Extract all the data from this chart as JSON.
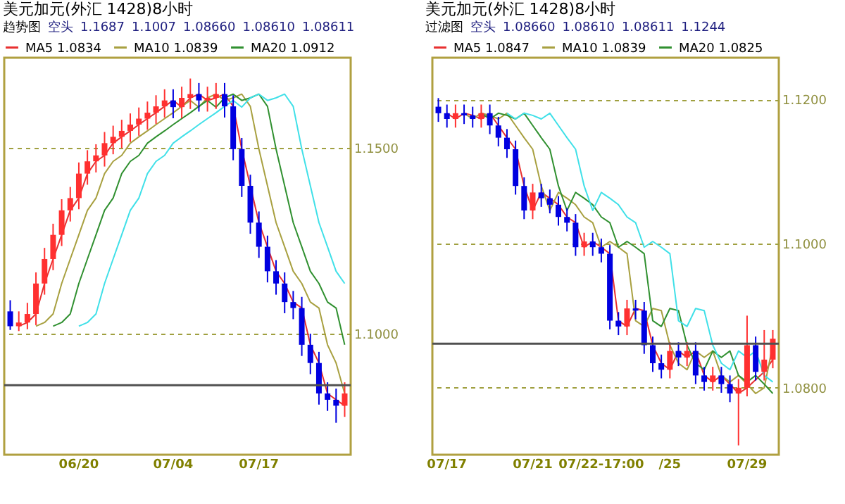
{
  "chart_data": [
    {
      "type": "candlestick",
      "title": "美元加元(外汇 1428)8小时",
      "subtitle": "趋势图",
      "annotations": [
        "空头",
        "1.1687",
        "1.1007",
        "1.08660",
        "1.08610",
        "1.08611"
      ],
      "categories": [
        null,
        null,
        null,
        null,
        null,
        null,
        null,
        null,
        "06/20",
        null,
        null,
        null,
        null,
        null,
        null,
        null,
        null,
        null,
        null,
        "07/04",
        null,
        null,
        null,
        null,
        null,
        null,
        null,
        null,
        null,
        "07/17",
        null,
        null,
        null,
        null,
        null,
        null,
        null,
        null,
        null,
        null
      ],
      "ohlc": [
        [
          1.106,
          1.109,
          1.101,
          1.102
        ],
        [
          1.102,
          1.106,
          1.1007,
          1.103
        ],
        [
          1.103,
          1.1083,
          1.1012,
          1.1053
        ],
        [
          1.1053,
          1.1165,
          1.1023,
          1.1135
        ],
        [
          1.1135,
          1.1231,
          1.1105,
          1.1201
        ],
        [
          1.1201,
          1.1296,
          1.1171,
          1.1266
        ],
        [
          1.1266,
          1.1362,
          1.1236,
          1.1332
        ],
        [
          1.1332,
          1.1395,
          1.1302,
          1.1365
        ],
        [
          1.1365,
          1.1461,
          1.1335,
          1.1431
        ],
        [
          1.1431,
          1.1494,
          1.1401,
          1.1464
        ],
        [
          1.1464,
          1.151,
          1.1434,
          1.148
        ],
        [
          1.148,
          1.1543,
          1.145,
          1.1513
        ],
        [
          1.1513,
          1.156,
          1.1483,
          1.153
        ],
        [
          1.153,
          1.1576,
          1.15,
          1.1546
        ],
        [
          1.1546,
          1.1593,
          1.1516,
          1.1563
        ],
        [
          1.1563,
          1.1609,
          1.1533,
          1.1579
        ],
        [
          1.1579,
          1.1625,
          1.1549,
          1.1595
        ],
        [
          1.1595,
          1.1642,
          1.1565,
          1.1612
        ],
        [
          1.1612,
          1.1658,
          1.1582,
          1.1628
        ],
        [
          1.1628,
          1.1658,
          1.158,
          1.161
        ],
        [
          1.161,
          1.1665,
          1.158,
          1.1635
        ],
        [
          1.1635,
          1.1687,
          1.1605,
          1.1645
        ],
        [
          1.1645,
          1.1675,
          1.1598,
          1.1628
        ],
        [
          1.1628,
          1.1665,
          1.1598,
          1.1635
        ],
        [
          1.1635,
          1.1675,
          1.1605,
          1.1645
        ],
        [
          1.1645,
          1.1675,
          1.1582,
          1.1612
        ],
        [
          1.1612,
          1.1642,
          1.1467,
          1.1497
        ],
        [
          1.1497,
          1.1527,
          1.1368,
          1.1398
        ],
        [
          1.1398,
          1.1428,
          1.1269,
          1.1299
        ],
        [
          1.1299,
          1.1329,
          1.1204,
          1.1234
        ],
        [
          1.1234,
          1.1264,
          1.1138,
          1.1168
        ],
        [
          1.1168,
          1.1198,
          1.1105,
          1.1135
        ],
        [
          1.1135,
          1.1165,
          1.1055,
          1.1085
        ],
        [
          1.1085,
          1.1115,
          1.1039,
          1.1069
        ],
        [
          1.1069,
          1.1099,
          1.094,
          1.097
        ],
        [
          1.097,
          1.1,
          1.0891,
          1.0921
        ],
        [
          1.0921,
          1.0951,
          1.0809,
          1.0839
        ],
        [
          1.0839,
          1.0869,
          1.0792,
          1.0822
        ],
        [
          1.0822,
          1.0852,
          1.076,
          1.0806
        ],
        [
          1.0806,
          1.0869,
          1.0776,
          1.0839
        ]
      ],
      "series": [
        {
          "type": "line",
          "name": "MA5 1.0834",
          "color": "#e83030",
          "values": [
            null,
            1.102,
            1.103,
            1.1053,
            1.1135,
            1.1201,
            1.1266,
            1.1332,
            1.1365,
            1.1431,
            1.1464,
            1.148,
            1.1513,
            1.153,
            1.1546,
            1.1563,
            1.1579,
            1.1595,
            1.1612,
            1.1628,
            1.161,
            1.1635,
            1.1645,
            1.1628,
            1.1635,
            1.1645,
            1.1612,
            1.1497,
            1.1398,
            1.1299,
            1.1234,
            1.1168,
            1.1135,
            1.1085,
            1.1069,
            1.097,
            1.0921,
            1.0839,
            1.0822,
            1.0806
          ]
        },
        {
          "type": "line",
          "name": "MA10 1.0839",
          "color": "#a8a040",
          "values": [
            null,
            null,
            null,
            1.102,
            1.103,
            1.1053,
            1.1135,
            1.1201,
            1.1266,
            1.1332,
            1.1365,
            1.1431,
            1.1464,
            1.148,
            1.1513,
            1.153,
            1.1546,
            1.1563,
            1.1579,
            1.1595,
            1.1612,
            1.1628,
            1.161,
            1.1635,
            1.1645,
            1.1628,
            1.1635,
            1.1645,
            1.1612,
            1.1497,
            1.1398,
            1.1299,
            1.1234,
            1.1168,
            1.1135,
            1.1085,
            1.1069,
            1.097,
            1.0921,
            1.0839
          ]
        },
        {
          "type": "line",
          "name": "MA20 1.0912",
          "color": "#309030",
          "values": [
            null,
            null,
            null,
            null,
            null,
            1.102,
            1.103,
            1.1053,
            1.1135,
            1.1201,
            1.1266,
            1.1332,
            1.1365,
            1.1431,
            1.1464,
            1.148,
            1.1513,
            1.153,
            1.1546,
            1.1563,
            1.1579,
            1.1595,
            1.1612,
            1.1628,
            1.161,
            1.1635,
            1.1645,
            1.1628,
            1.1635,
            1.1645,
            1.1612,
            1.1497,
            1.1398,
            1.1299,
            1.1234,
            1.1168,
            1.1135,
            1.1085,
            1.1069,
            1.097
          ]
        },
        {
          "type": "line",
          "color": "#40e0e8",
          "values": [
            null,
            null,
            null,
            null,
            null,
            null,
            null,
            null,
            1.102,
            1.103,
            1.1053,
            1.1135,
            1.1201,
            1.1266,
            1.1332,
            1.1365,
            1.1431,
            1.1464,
            1.148,
            1.1513,
            1.153,
            1.1546,
            1.1563,
            1.1579,
            1.1595,
            1.1612,
            1.1628,
            1.161,
            1.1635,
            1.1645,
            1.1628,
            1.1635,
            1.1645,
            1.1612,
            1.1497,
            1.1398,
            1.1299,
            1.1234,
            1.1168,
            1.1135
          ]
        }
      ],
      "ylim": [
        1.0674,
        1.1743
      ],
      "yticks": [
        {
          "value": 1.15,
          "label": "1.1500"
        },
        {
          "value": 1.1,
          "label": "1.1000"
        }
      ],
      "grid": "y",
      "legend": "top",
      "ref_lines": [
        {
          "axis": "y",
          "value": 1.0861,
          "color": "#505050"
        }
      ]
    },
    {
      "type": "candlestick",
      "title": "美元加元(外汇 1428)8小时",
      "subtitle": "过滤图",
      "annotations": [
        "空头",
        "1.08660",
        "1.08610",
        "1.08611",
        "1.1244"
      ],
      "categories": [
        null,
        "07/17",
        null,
        null,
        null,
        null,
        null,
        null,
        null,
        null,
        null,
        "07/21",
        null,
        null,
        null,
        null,
        null,
        null,
        null,
        "07/22-17:00",
        null,
        null,
        null,
        null,
        null,
        null,
        null,
        "/25",
        null,
        null,
        null,
        null,
        null,
        null,
        null,
        null,
        "07/29",
        null,
        null,
        null
      ],
      "ohlc": [
        [
          1.119,
          1.1202,
          1.1169,
          1.1181
        ],
        [
          1.1181,
          1.1193,
          1.1161,
          1.1173
        ],
        [
          1.1173,
          1.1193,
          1.1161,
          1.1181
        ],
        [
          1.1181,
          1.1193,
          1.1166,
          1.1178
        ],
        [
          1.1178,
          1.119,
          1.1161,
          1.1173
        ],
        [
          1.1173,
          1.1193,
          1.1161,
          1.1181
        ],
        [
          1.1181,
          1.1193,
          1.1152,
          1.1164
        ],
        [
          1.1164,
          1.1176,
          1.1135,
          1.1147
        ],
        [
          1.1147,
          1.1159,
          1.1119,
          1.1131
        ],
        [
          1.1131,
          1.1143,
          1.1068,
          1.108
        ],
        [
          1.108,
          1.1092,
          1.1034,
          1.1046
        ],
        [
          1.1046,
          1.1083,
          1.1034,
          1.1071
        ],
        [
          1.1071,
          1.1083,
          1.1051,
          1.1063
        ],
        [
          1.1063,
          1.1075,
          1.1042,
          1.1054
        ],
        [
          1.1054,
          1.1066,
          1.1025,
          1.1037
        ],
        [
          1.1037,
          1.1049,
          1.1017,
          1.1029
        ],
        [
          1.1029,
          1.1041,
          1.0983,
          1.0995
        ],
        [
          1.0995,
          1.1015,
          1.0983,
          1.1003
        ],
        [
          1.1003,
          1.1015,
          1.0983,
          1.0995
        ],
        [
          1.0995,
          1.1007,
          1.0974,
          1.0986
        ],
        [
          1.0986,
          1.0998,
          1.0881,
          1.0893
        ],
        [
          1.0893,
          1.0905,
          1.0873,
          1.0885
        ],
        [
          1.0885,
          1.0922,
          1.0873,
          1.091
        ],
        [
          1.091,
          1.0922,
          1.0895,
          1.0907
        ],
        [
          1.0907,
          1.0919,
          1.0847,
          1.0859
        ],
        [
          1.0859,
          1.0871,
          1.0822,
          1.0834
        ],
        [
          1.0834,
          1.0846,
          1.0813,
          1.0825
        ],
        [
          1.0825,
          1.0863,
          1.0813,
          1.0851
        ],
        [
          1.0851,
          1.0863,
          1.083,
          1.0842
        ],
        [
          1.0842,
          1.0863,
          1.083,
          1.0851
        ],
        [
          1.0851,
          1.0863,
          1.0805,
          1.0817
        ],
        [
          1.0817,
          1.0829,
          1.0796,
          1.0808
        ],
        [
          1.0808,
          1.0829,
          1.0796,
          1.0817
        ],
        [
          1.0817,
          1.0829,
          1.0793,
          1.0805
        ],
        [
          1.0805,
          1.0817,
          1.078,
          1.0792
        ],
        [
          1.0792,
          1.0812,
          1.072,
          1.08
        ],
        [
          1.08,
          1.09,
          1.0788,
          1.0859
        ],
        [
          1.0859,
          1.0871,
          1.081,
          1.0822
        ],
        [
          1.0822,
          1.088,
          1.081,
          1.0839
        ],
        [
          1.0839,
          1.088,
          1.0827,
          1.0868
        ]
      ],
      "series": [
        {
          "type": "line",
          "name": "MA5 1.0847",
          "color": "#e83030",
          "values": [
            null,
            1.1181,
            1.1173,
            1.1181,
            1.1178,
            1.1173,
            1.1181,
            1.1164,
            1.1147,
            1.1131,
            1.108,
            1.1046,
            1.1071,
            1.1063,
            1.1054,
            1.1037,
            1.1029,
            1.0995,
            1.1003,
            1.0995,
            1.0986,
            1.0893,
            1.0885,
            1.091,
            1.0907,
            1.0859,
            1.0834,
            1.0825,
            1.0851,
            1.0842,
            1.0851,
            1.0817,
            1.0808,
            1.0817,
            1.0805,
            1.0792,
            1.08,
            null,
            1.0822,
            1.0839
          ]
        },
        {
          "type": "line",
          "name": "MA10 1.0839",
          "color": "#a8a040",
          "values": [
            null,
            null,
            null,
            1.1181,
            1.1173,
            1.1181,
            1.1178,
            1.1173,
            1.1181,
            1.1164,
            1.1147,
            1.1131,
            1.108,
            1.1046,
            1.1071,
            1.1063,
            1.1054,
            1.1037,
            1.1029,
            1.0995,
            1.1003,
            1.0995,
            1.0986,
            1.0893,
            1.0885,
            1.091,
            1.0907,
            1.0859,
            1.0834,
            1.0825,
            1.0851,
            1.0842,
            1.0851,
            1.0817,
            1.0808,
            1.0817,
            1.0805,
            1.0792,
            1.08,
            1.0859
          ]
        },
        {
          "type": "line",
          "name": "MA20 1.0825",
          "color": "#309030",
          "values": [
            null,
            null,
            null,
            null,
            null,
            1.1181,
            1.1173,
            1.1181,
            1.1178,
            1.1173,
            1.1181,
            1.1164,
            1.1147,
            1.1131,
            1.108,
            1.1046,
            1.1071,
            1.1063,
            1.1054,
            1.1037,
            1.1029,
            1.0995,
            1.1003,
            1.0995,
            1.0986,
            1.0893,
            1.0885,
            1.091,
            1.0907,
            1.0859,
            1.0834,
            1.0825,
            1.0851,
            1.0842,
            1.0851,
            1.0817,
            1.0808,
            1.0817,
            1.0805,
            1.0792
          ]
        },
        {
          "type": "line",
          "color": "#40e0e8",
          "values": [
            null,
            null,
            null,
            null,
            null,
            null,
            null,
            null,
            1.1181,
            1.1173,
            1.1181,
            1.1178,
            1.1173,
            1.1181,
            1.1164,
            1.1147,
            1.1131,
            1.108,
            1.1046,
            1.1071,
            1.1063,
            1.1054,
            1.1037,
            1.1029,
            1.0995,
            1.1003,
            1.0995,
            1.0986,
            1.0893,
            1.0885,
            1.091,
            1.0907,
            1.0859,
            1.0834,
            1.0825,
            1.0851,
            1.0842,
            1.0851,
            1.0817,
            1.0808
          ]
        }
      ],
      "ylim": [
        1.0707,
        1.1258
      ],
      "yticks": [
        {
          "value": 1.12,
          "label": "1.1200"
        },
        {
          "value": 1.1,
          "label": "1.1000"
        },
        {
          "value": 1.08,
          "label": "1.0800"
        }
      ],
      "grid": "y",
      "legend": "top",
      "ref_lines": [
        {
          "axis": "y",
          "value": 1.0861,
          "color": "#505050"
        }
      ]
    }
  ]
}
